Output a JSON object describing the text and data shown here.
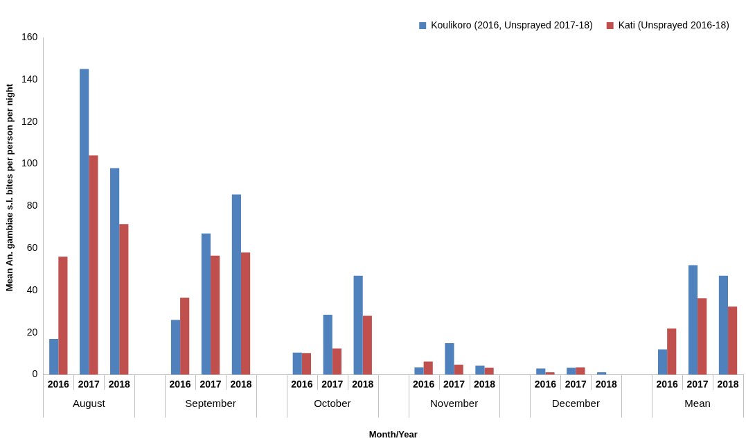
{
  "chart_data": {
    "type": "bar",
    "xlabel": "Month/Year",
    "ylabel": "Mean An. gambiae s.l. bites per person per night",
    "categories": [
      "2016",
      "2017",
      "2018",
      null,
      "2016",
      "2017",
      "2018",
      null,
      "2016",
      "2017",
      "2018",
      null,
      "2016",
      "2017",
      "2018",
      null,
      "2016",
      "2017",
      "2018",
      null,
      "2016",
      "2017",
      "2018"
    ],
    "series": [
      {
        "name": "Koulikoro (2016, Unsprayed 2017-18)",
        "color": "#4f81bd",
        "values": [
          17,
          145,
          98,
          null,
          26,
          67,
          85.5,
          null,
          10.5,
          28.5,
          47,
          null,
          3.5,
          15,
          4.3,
          null,
          3,
          3.3,
          1.2,
          null,
          12,
          52,
          47
        ]
      },
      {
        "name": "Kati (Unsprayed 2016-18)",
        "color": "#c0504d",
        "values": [
          56,
          104,
          71.5,
          null,
          36.5,
          56.5,
          58,
          null,
          10.3,
          12.5,
          28,
          null,
          6.3,
          4.8,
          3.3,
          null,
          1.2,
          3.5,
          0,
          null,
          22,
          36.3,
          32.3
        ]
      }
    ],
    "annotations": [
      "August",
      "September",
      "October",
      "November",
      "December",
      "Mean"
    ],
    "ylim": [
      0,
      160
    ],
    "yticks": [
      0,
      20,
      40,
      60,
      80,
      100,
      120,
      140,
      160
    ],
    "grid": false,
    "legend": "top right"
  }
}
